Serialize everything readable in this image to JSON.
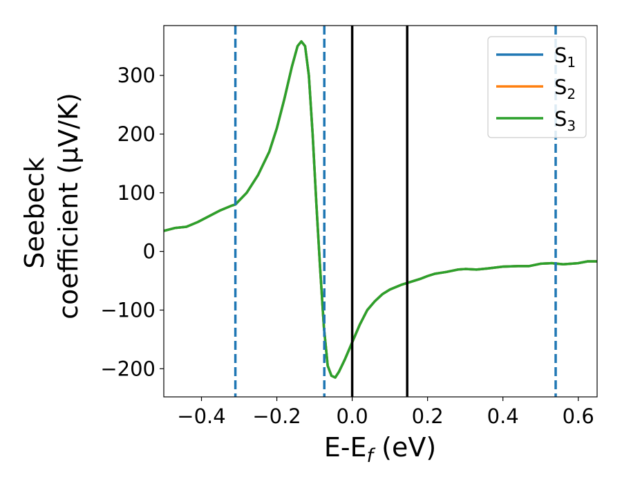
{
  "chart_data": {
    "type": "line",
    "title": "",
    "xlabel": "E-E",
    "xlabel_sub": "f",
    "xlabel_unit": " (eV)",
    "ylabel_line1": "Seebeck",
    "ylabel_line2": "coefficient  (μV/K)",
    "xlim": [
      -0.5,
      0.65
    ],
    "ylim": [
      -248,
      385
    ],
    "x_ticks": [
      -0.4,
      -0.2,
      0.0,
      0.2,
      0.4,
      0.6
    ],
    "x_tick_labels": [
      "−0.4",
      "−0.2",
      "0.0",
      "0.2",
      "0.4",
      "0.6"
    ],
    "y_ticks": [
      -200,
      -100,
      0,
      100,
      200,
      300
    ],
    "y_tick_labels": [
      "−200",
      "−100",
      "0",
      "100",
      "200",
      "300"
    ],
    "grid": false,
    "legend_position": "top-right",
    "x": [
      -0.5,
      -0.47,
      -0.44,
      -0.41,
      -0.38,
      -0.35,
      -0.32,
      -0.31,
      -0.28,
      -0.25,
      -0.22,
      -0.2,
      -0.18,
      -0.16,
      -0.145,
      -0.135,
      -0.125,
      -0.115,
      -0.105,
      -0.095,
      -0.085,
      -0.075,
      -0.065,
      -0.055,
      -0.045,
      -0.035,
      -0.02,
      0.0,
      0.02,
      0.04,
      0.06,
      0.08,
      0.1,
      0.13,
      0.15,
      0.18,
      0.2,
      0.22,
      0.25,
      0.28,
      0.3,
      0.33,
      0.36,
      0.4,
      0.44,
      0.47,
      0.5,
      0.53,
      0.56,
      0.6,
      0.625,
      0.65
    ],
    "series": [
      {
        "name": "S",
        "sub": "1",
        "color": "#1f77b4",
        "y": [
          35,
          40,
          42,
          50,
          60,
          70,
          78,
          80,
          100,
          130,
          170,
          210,
          260,
          315,
          350,
          358,
          350,
          300,
          200,
          80,
          -30,
          -130,
          -195,
          -212,
          -215,
          -205,
          -185,
          -155,
          -125,
          -100,
          -85,
          -73,
          -65,
          -57,
          -53,
          -47,
          -42,
          -38,
          -35,
          -31,
          -30,
          -31,
          -29,
          -26,
          -25,
          -25,
          -21,
          -20,
          -22,
          -20,
          -17,
          -17
        ]
      },
      {
        "name": "S",
        "sub": "2",
        "color": "#ff7f0e",
        "y": [
          35,
          40,
          42,
          50,
          60,
          70,
          78,
          80,
          100,
          130,
          170,
          210,
          260,
          315,
          350,
          358,
          350,
          300,
          200,
          80,
          -30,
          -130,
          -195,
          -212,
          -215,
          -205,
          -185,
          -155,
          -125,
          -100,
          -85,
          -73,
          -65,
          -57,
          -53,
          -47,
          -42,
          -38,
          -35,
          -31,
          -30,
          -31,
          -29,
          -26,
          -25,
          -25,
          -21,
          -20,
          -22,
          -20,
          -17,
          -17
        ]
      },
      {
        "name": "S",
        "sub": "3",
        "color": "#2ca02c",
        "y": [
          35,
          40,
          42,
          50,
          60,
          70,
          78,
          80,
          100,
          130,
          170,
          210,
          260,
          315,
          350,
          358,
          350,
          300,
          200,
          80,
          -30,
          -130,
          -195,
          -212,
          -215,
          -205,
          -185,
          -155,
          -125,
          -100,
          -85,
          -73,
          -65,
          -57,
          -53,
          -47,
          -42,
          -38,
          -35,
          -31,
          -30,
          -31,
          -29,
          -26,
          -25,
          -25,
          -21,
          -20,
          -22,
          -20,
          -17,
          -17
        ]
      }
    ],
    "vlines_dashed": {
      "color": "#1f77b4",
      "x": [
        -0.31,
        -0.074,
        0.54
      ]
    },
    "vlines_solid": {
      "color": "#000000",
      "x": [
        0.0,
        0.146
      ]
    }
  }
}
